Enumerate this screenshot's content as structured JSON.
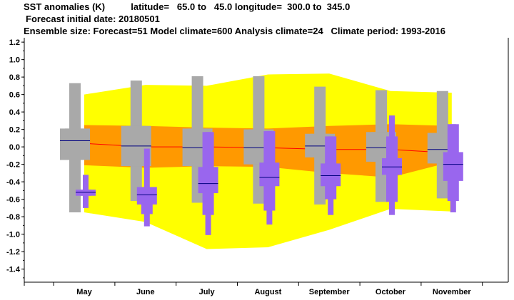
{
  "header": {
    "line1": "SST anomalies (K)          latitude=   65.0 to   45.0 longitude=  300.0 to  345.0",
    "line2": "Forecast initial date: 20180501",
    "line3": "Ensemble size: Forecast=51 Model climate=600 Analysis climate=24   Climate period: 1993-2016"
  },
  "chart_data": {
    "type": "box-plume",
    "categories": [
      "May",
      "June",
      "July",
      "August",
      "September",
      "October",
      "November"
    ],
    "ylim": [
      -1.55,
      1.25
    ],
    "yticks": [
      1.2,
      1.0,
      0.8,
      0.6,
      0.4,
      0.2,
      0.0,
      -0.2,
      -0.4,
      -0.6,
      -0.8,
      -1.0,
      -1.2,
      -1.4
    ],
    "ytick_labels": [
      "1.2",
      "1.0",
      "0.8",
      "0.6",
      "0.4",
      "0.2",
      "0.0",
      "-0.2",
      "-0.4",
      "-0.6",
      "-0.8",
      "-1.0",
      "-1.2",
      "-1.4"
    ],
    "climate_band_outer": {
      "upper": [
        0.6,
        0.71,
        0.7,
        0.83,
        0.84,
        0.64,
        0.62
      ],
      "lower": [
        -0.75,
        -0.86,
        -1.17,
        -1.15,
        -0.95,
        -0.71,
        -0.74
      ]
    },
    "climate_band_inner": {
      "upper": [
        0.25,
        0.24,
        0.22,
        0.21,
        0.24,
        0.26,
        0.24
      ],
      "lower": [
        -0.21,
        -0.24,
        -0.22,
        -0.23,
        -0.3,
        -0.35,
        -0.17
      ]
    },
    "climate_median": [
      0.04,
      0.0,
      0.0,
      -0.01,
      -0.03,
      -0.03,
      -0.07
    ],
    "model_climate": [
      {
        "min": -0.75,
        "p10": -0.15,
        "p25": -0.15,
        "median": 0.07,
        "p75": 0.21,
        "p90": 0.21,
        "max": 0.73
      },
      {
        "min": -0.62,
        "p10": -0.22,
        "p25": -0.22,
        "median": 0.01,
        "p75": 0.24,
        "p90": 0.24,
        "max": 0.76
      },
      {
        "min": -0.64,
        "p10": -0.22,
        "p25": -0.22,
        "median": -0.01,
        "p75": 0.21,
        "p90": 0.21,
        "max": 0.81
      },
      {
        "min": -0.65,
        "p10": -0.2,
        "p25": -0.2,
        "median": -0.01,
        "p75": 0.2,
        "p90": 0.2,
        "max": 0.81
      },
      {
        "min": -0.66,
        "p10": -0.12,
        "p25": -0.12,
        "median": 0.01,
        "p75": 0.15,
        "p90": 0.15,
        "max": 0.69
      },
      {
        "min": -0.63,
        "p10": -0.17,
        "p25": -0.17,
        "median": -0.01,
        "p75": 0.17,
        "p90": 0.17,
        "max": 0.65
      },
      {
        "min": -0.59,
        "p10": -0.19,
        "p25": -0.19,
        "median": -0.03,
        "p75": 0.16,
        "p90": 0.16,
        "max": 0.64
      }
    ],
    "forecast": [
      {
        "min": -0.7,
        "p10": -0.56,
        "p25": -0.56,
        "median": -0.52,
        "p75": -0.49,
        "p90": -0.49,
        "max": -0.32
      },
      {
        "min": -0.91,
        "p10": -0.77,
        "p25": -0.66,
        "median": -0.55,
        "p75": -0.46,
        "p90": -0.46,
        "max": -0.02
      },
      {
        "min": -1.01,
        "p10": -0.78,
        "p25": -0.53,
        "median": -0.42,
        "p75": -0.23,
        "p90": 0.17,
        "max": 0.17
      },
      {
        "min": -0.89,
        "p10": -0.73,
        "p25": -0.45,
        "median": -0.35,
        "p75": -0.18,
        "p90": 0.18,
        "max": 0.18
      },
      {
        "min": -0.78,
        "p10": -0.6,
        "p25": -0.45,
        "median": -0.33,
        "p75": -0.19,
        "p90": 0.12,
        "max": 0.12
      },
      {
        "min": -0.78,
        "p10": -0.63,
        "p25": -0.32,
        "median": -0.23,
        "p75": -0.13,
        "p90": 0.12,
        "max": 0.36
      },
      {
        "min": -0.75,
        "p10": -0.62,
        "p25": -0.39,
        "median": -0.2,
        "p75": -0.06,
        "p90": 0.26,
        "max": 0.26
      }
    ],
    "colors": {
      "outer_band": "#ffff00",
      "inner_band": "#ff9900",
      "median_line": "#ff0000",
      "model_box": "#a9a9a9",
      "forecast_box": "#9966ee",
      "box_median": "#000080"
    }
  }
}
